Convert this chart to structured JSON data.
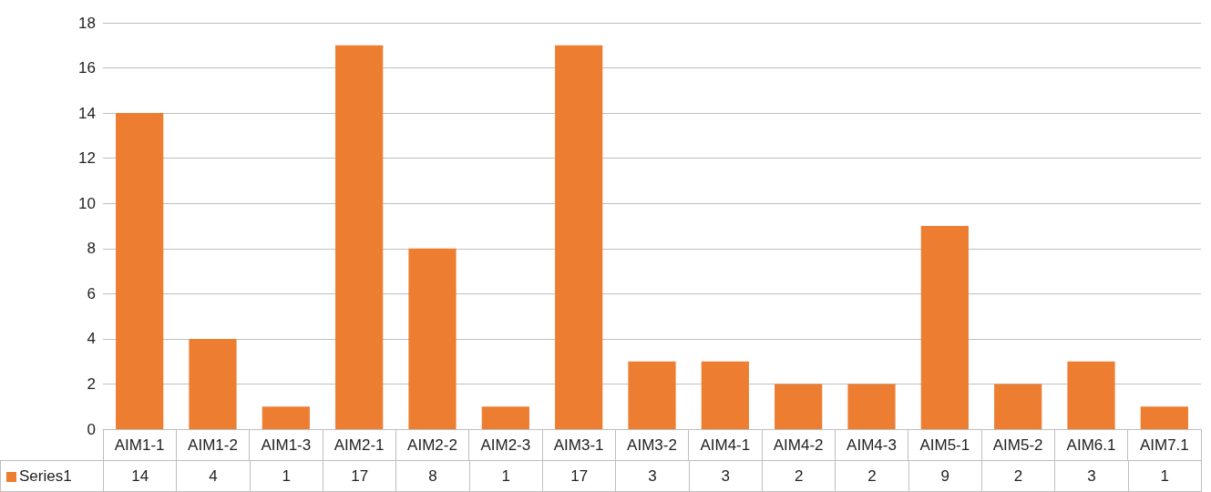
{
  "chart_data": {
    "type": "bar",
    "categories": [
      "AIM1-1",
      "AIM1-2",
      "AIM1-3",
      "AIM2-1",
      "AIM2-2",
      "AIM2-3",
      "AIM3-1",
      "AIM3-2",
      "AIM4-1",
      "AIM4-2",
      "AIM4-3",
      "AIM5-1",
      "AIM5-2",
      "AIM6.1",
      "AIM7.1"
    ],
    "series": [
      {
        "name": "Series1",
        "color": "#ed7d31",
        "values": [
          14,
          4,
          1,
          17,
          8,
          1,
          17,
          3,
          3,
          2,
          2,
          9,
          2,
          3,
          1
        ]
      }
    ],
    "ylim": [
      0,
      18
    ],
    "yticks": [
      0,
      2,
      4,
      6,
      8,
      10,
      12,
      14,
      16,
      18
    ],
    "grid": "y",
    "legend": "bottom",
    "data_labels": true
  }
}
